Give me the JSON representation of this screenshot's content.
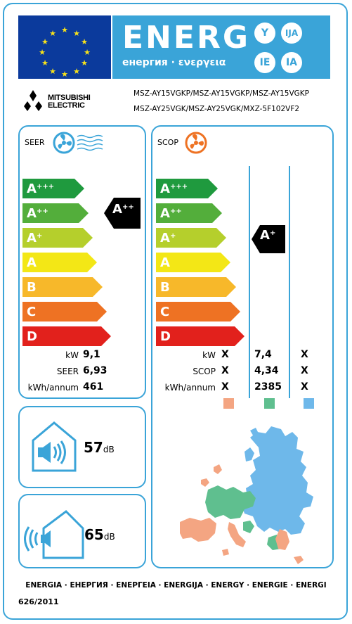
{
  "header": {
    "title": "ENERG",
    "subtitle": "енергия · ενεργεια",
    "lang_circles": [
      "Y",
      "IJA",
      "IE",
      "IA"
    ]
  },
  "brand": {
    "line1": "MITSUBISHI",
    "line2": "ELECTRIC"
  },
  "models": {
    "line1": "MSZ-AY15VGKP/MSZ-AY15VGKP/MSZ-AY15VGKP",
    "line2": "MSZ-AY25VGK/MSZ-AY25VGK/MXZ-5F102VF2"
  },
  "scale_labels": [
    {
      "base": "A",
      "sup": "+++"
    },
    {
      "base": "A",
      "sup": "++"
    },
    {
      "base": "A",
      "sup": "+"
    },
    {
      "base": "A",
      "sup": ""
    },
    {
      "base": "B",
      "sup": ""
    },
    {
      "base": "C",
      "sup": ""
    },
    {
      "base": "D",
      "sup": ""
    }
  ],
  "scale_colors": [
    "#1f9a3e",
    "#53ae3b",
    "#b5cf2c",
    "#f3e716",
    "#f7b82a",
    "#ee7223",
    "#e2211c"
  ],
  "cooling": {
    "title": "SEER",
    "class": {
      "base": "A",
      "sup": "++"
    },
    "rows": [
      {
        "label": "kW",
        "value": "9,1"
      },
      {
        "label": "SEER",
        "value": "6,93"
      },
      {
        "label": "kWh/annum",
        "value": "461"
      }
    ]
  },
  "heating": {
    "title": "SCOP",
    "class": {
      "base": "A",
      "sup": "+"
    },
    "rows": [
      {
        "label": "kW",
        "values": [
          "X",
          "7,4",
          "X"
        ]
      },
      {
        "label": "SCOP",
        "values": [
          "X",
          "4,34",
          "X"
        ]
      },
      {
        "label": "kWh/annum",
        "values": [
          "X",
          "2385",
          "X"
        ]
      }
    ],
    "zone_colors": [
      "#f4a582",
      "#5fbf8f",
      "#6eb8ea"
    ]
  },
  "noise": {
    "indoor": {
      "value": "57",
      "unit": "dB"
    },
    "outdoor": {
      "value": "65",
      "unit": "dB"
    }
  },
  "footer": {
    "languages": "ENERGIA · ЕНЕРГИЯ · ΕΝΕΡΓΕΙΑ · ENERGIJA · ENERGY · ENERGIE · ENERGI",
    "regulation": "626/2011"
  }
}
